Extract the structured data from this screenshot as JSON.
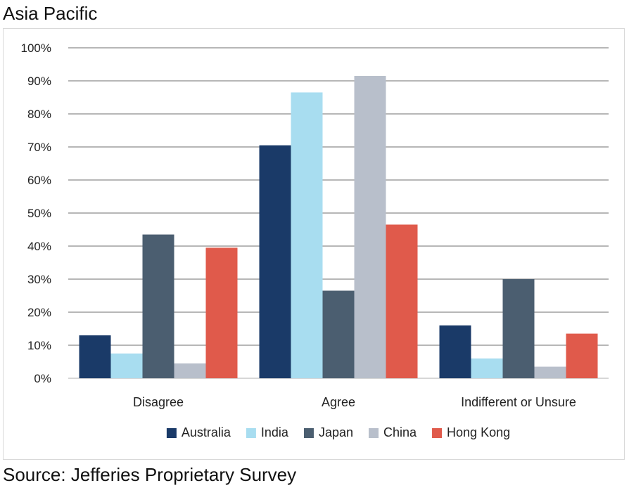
{
  "title": "Asia Pacific",
  "source": "Source: Jefferies Proprietary Survey",
  "chart_data": {
    "type": "bar",
    "title": "Asia Pacific",
    "xlabel": "",
    "ylabel": "",
    "ylim": [
      0,
      100
    ],
    "y_ticks": [
      "0%",
      "10%",
      "20%",
      "30%",
      "40%",
      "50%",
      "60%",
      "70%",
      "80%",
      "90%",
      "100%"
    ],
    "grid": true,
    "legend_position": "bottom",
    "categories": [
      "Disagree",
      "Agree",
      "Indifferent or Unsure"
    ],
    "series": [
      {
        "name": "Australia",
        "color": "#1a3a68",
        "values": [
          13,
          70.5,
          16
        ]
      },
      {
        "name": "India",
        "color": "#a8ddf0",
        "values": [
          7.5,
          86.5,
          6
        ]
      },
      {
        "name": "Japan",
        "color": "#4b5e70",
        "values": [
          43.5,
          26.5,
          30
        ]
      },
      {
        "name": "China",
        "color": "#b8bfcb",
        "values": [
          4.5,
          91.5,
          3.5
        ]
      },
      {
        "name": "Hong Kong",
        "color": "#e05a4b",
        "values": [
          39.5,
          46.5,
          13.5
        ]
      }
    ]
  }
}
